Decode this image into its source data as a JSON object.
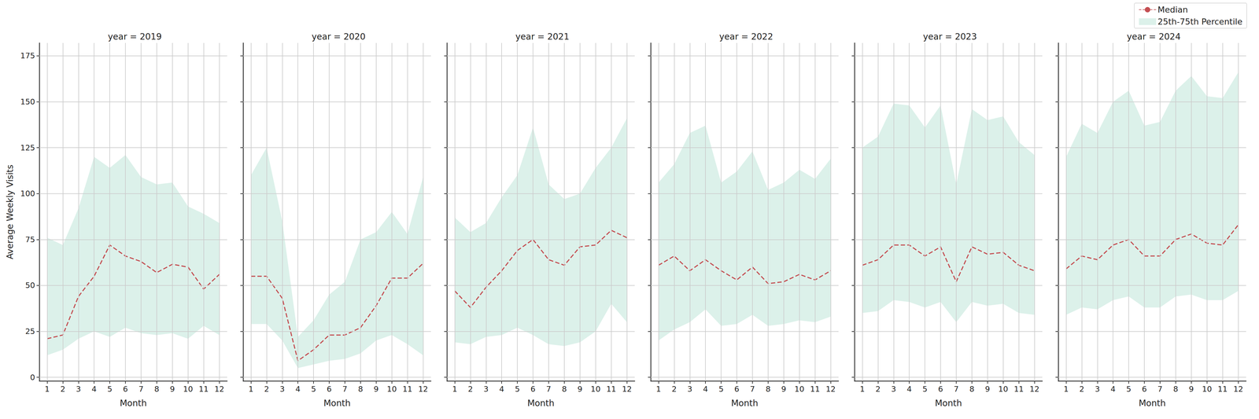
{
  "chart_data": [
    {
      "type": "line",
      "title": "year = 2019",
      "x_label": "Month",
      "y_label": "Average Weekly Visits",
      "x": [
        1,
        2,
        3,
        4,
        5,
        6,
        7,
        8,
        9,
        10,
        11,
        12
      ],
      "xlim": [
        0.5,
        12.5
      ],
      "xticks": [
        1,
        2,
        3,
        4,
        5,
        6,
        7,
        8,
        9,
        10,
        11,
        12
      ],
      "ylim": [
        -2,
        182
      ],
      "yticks": [
        0,
        25,
        50,
        75,
        100,
        125,
        150,
        175
      ],
      "grid": true,
      "series": [
        {
          "name": "Median",
          "type": "line",
          "color": "#c44e52",
          "line_style": "dashed",
          "values": [
            21,
            23,
            44,
            55,
            72,
            66,
            63,
            57,
            61.5,
            60,
            48,
            56
          ]
        },
        {
          "name": "25th-75th Percentile",
          "type": "band",
          "color": "#dcf1ea",
          "lower": [
            12,
            15,
            21,
            25,
            22,
            27,
            24,
            23,
            24,
            21,
            28,
            23
          ],
          "upper": [
            76,
            72,
            92,
            120,
            114,
            121,
            109,
            105,
            106,
            93,
            89,
            84
          ]
        }
      ]
    },
    {
      "type": "line",
      "title": "year = 2020",
      "x_label": "Month",
      "tick_labels": "x",
      "x": [
        1,
        2,
        3,
        4,
        5,
        6,
        7,
        8,
        9,
        10,
        11,
        12
      ],
      "xlim": [
        0.5,
        12.5
      ],
      "xticks": [
        1,
        2,
        3,
        4,
        5,
        6,
        7,
        8,
        9,
        10,
        11,
        12
      ],
      "ylim": [
        -2,
        182
      ],
      "yticks": [
        0,
        25,
        50,
        75,
        100,
        125,
        150,
        175
      ],
      "grid": true,
      "series": [
        {
          "name": "Median",
          "type": "line",
          "color": "#c44e52",
          "line_style": "dashed",
          "values": [
            55,
            55,
            43,
            9,
            15,
            23,
            23,
            27,
            39,
            54,
            54,
            62
          ]
        },
        {
          "name": "25th-75th Percentile",
          "type": "band",
          "color": "#dcf1ea",
          "lower": [
            29,
            29,
            20,
            5,
            7,
            9,
            10,
            13,
            20,
            23,
            18,
            12
          ],
          "upper": [
            110,
            125,
            85,
            22,
            31,
            45,
            52,
            75,
            79,
            90,
            78,
            109
          ]
        }
      ]
    },
    {
      "type": "line",
      "title": "year = 2021",
      "x_label": "Month",
      "tick_labels": "x",
      "x": [
        1,
        2,
        3,
        4,
        5,
        6,
        7,
        8,
        9,
        10,
        11,
        12
      ],
      "xlim": [
        0.5,
        12.5
      ],
      "xticks": [
        1,
        2,
        3,
        4,
        5,
        6,
        7,
        8,
        9,
        10,
        11,
        12
      ],
      "ylim": [
        -2,
        182
      ],
      "yticks": [
        0,
        25,
        50,
        75,
        100,
        125,
        150,
        175
      ],
      "grid": true,
      "series": [
        {
          "name": "Median",
          "type": "line",
          "color": "#c44e52",
          "line_style": "dashed",
          "values": [
            47,
            38,
            49,
            58,
            69,
            75,
            64,
            61,
            71,
            72,
            80,
            76
          ]
        },
        {
          "name": "25th-75th Percentile",
          "type": "band",
          "color": "#dcf1ea",
          "lower": [
            19,
            18,
            22,
            23,
            27,
            23,
            18,
            17,
            19,
            25,
            40,
            30
          ],
          "upper": [
            87,
            79,
            84,
            98,
            110,
            136,
            105,
            97,
            100,
            114,
            125,
            141
          ]
        }
      ]
    },
    {
      "type": "line",
      "title": "year = 2022",
      "x_label": "Month",
      "tick_labels": "x",
      "x": [
        1,
        2,
        3,
        4,
        5,
        6,
        7,
        8,
        9,
        10,
        11,
        12
      ],
      "xlim": [
        0.5,
        12.5
      ],
      "xticks": [
        1,
        2,
        3,
        4,
        5,
        6,
        7,
        8,
        9,
        10,
        11,
        12
      ],
      "ylim": [
        -2,
        182
      ],
      "yticks": [
        0,
        25,
        50,
        75,
        100,
        125,
        150,
        175
      ],
      "grid": true,
      "series": [
        {
          "name": "Median",
          "type": "line",
          "color": "#c44e52",
          "line_style": "dashed",
          "values": [
            61,
            66,
            58,
            64,
            58,
            53,
            60,
            51,
            52,
            56,
            53,
            58
          ]
        },
        {
          "name": "25th-75th Percentile",
          "type": "band",
          "color": "#dcf1ea",
          "lower": [
            20,
            26,
            30,
            37,
            28,
            29,
            34,
            28,
            29,
            31,
            30,
            33
          ],
          "upper": [
            106,
            116,
            133,
            137,
            106,
            112,
            123,
            102,
            106,
            113,
            108,
            119
          ]
        }
      ]
    },
    {
      "type": "line",
      "title": "year = 2023",
      "x_label": "Month",
      "tick_labels": "x",
      "x": [
        1,
        2,
        3,
        4,
        5,
        6,
        7,
        8,
        9,
        10,
        11,
        12
      ],
      "xlim": [
        0.5,
        12.5
      ],
      "xticks": [
        1,
        2,
        3,
        4,
        5,
        6,
        7,
        8,
        9,
        10,
        11,
        12
      ],
      "ylim": [
        -2,
        182
      ],
      "yticks": [
        0,
        25,
        50,
        75,
        100,
        125,
        150,
        175
      ],
      "grid": true,
      "series": [
        {
          "name": "Median",
          "type": "line",
          "color": "#c44e52",
          "line_style": "dashed",
          "values": [
            61,
            64,
            72,
            72,
            66,
            71,
            52,
            71,
            67,
            68,
            61,
            58
          ]
        },
        {
          "name": "25th-75th Percentile",
          "type": "band",
          "color": "#dcf1ea",
          "lower": [
            35,
            36,
            42,
            41,
            38,
            41,
            30,
            41,
            39,
            40,
            35,
            34
          ],
          "upper": [
            125,
            131,
            149,
            148,
            136,
            148,
            105,
            146,
            140,
            142,
            128,
            121
          ]
        }
      ]
    },
    {
      "type": "line",
      "title": "year = 2024",
      "x_label": "Month",
      "tick_labels": "x",
      "legend": "upper right",
      "x": [
        1,
        2,
        3,
        4,
        5,
        6,
        7,
        8,
        9,
        10,
        11,
        12
      ],
      "xlim": [
        0.5,
        12.5
      ],
      "xticks": [
        1,
        2,
        3,
        4,
        5,
        6,
        7,
        8,
        9,
        10,
        11,
        12
      ],
      "ylim": [
        -2,
        182
      ],
      "yticks": [
        0,
        25,
        50,
        75,
        100,
        125,
        150,
        175
      ],
      "grid": true,
      "series": [
        {
          "name": "Median",
          "type": "line",
          "color": "#c44e52",
          "line_style": "dashed",
          "values": [
            59,
            66,
            64,
            72,
            75,
            66,
            66,
            75,
            78,
            73,
            72,
            83
          ]
        },
        {
          "name": "25th-75th Percentile",
          "type": "band",
          "color": "#dcf1ea",
          "lower": [
            34,
            38,
            37,
            42,
            44,
            38,
            38,
            44,
            45,
            42,
            42,
            47
          ],
          "upper": [
            120,
            138,
            133,
            150,
            156,
            137,
            139,
            156,
            164,
            153,
            152,
            166
          ]
        }
      ]
    }
  ]
}
